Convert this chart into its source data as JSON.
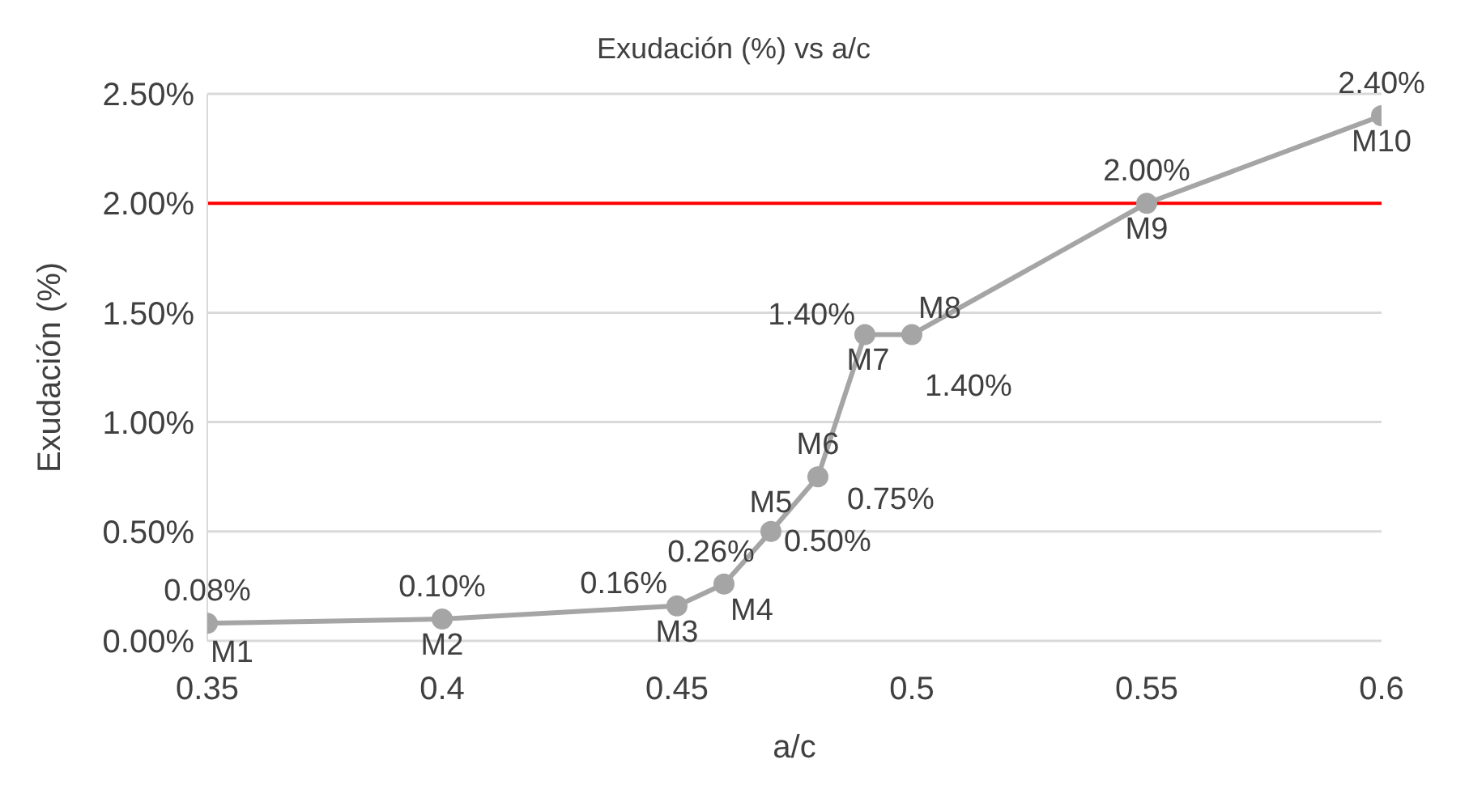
{
  "chart_data": {
    "type": "line",
    "title": "Exudación (%) vs a/c",
    "xlabel": "a/c",
    "ylabel": "Exudación (%)",
    "x": [
      0.35,
      0.4,
      0.45,
      0.46,
      0.47,
      0.48,
      0.49,
      0.5,
      0.55,
      0.6
    ],
    "series": [
      {
        "color": "#a5a5a5",
        "values": [
          0.08,
          0.1,
          0.16,
          0.26,
          0.5,
          0.75,
          1.4,
          1.4,
          2.0,
          2.4
        ],
        "value_labels": [
          "0.08%",
          "0.10%",
          "0.16%",
          "0.26%",
          "0.50%",
          "0.75%",
          "1.40%",
          "1.40%",
          "2.00%",
          "2.40%"
        ]
      }
    ],
    "xlim": [
      0.35,
      0.6
    ],
    "xticks": [
      0.35,
      0.4,
      0.45,
      0.5,
      0.55,
      0.6
    ],
    "ylim": [
      0,
      2.5
    ],
    "yticks": [
      {
        "value": 0,
        "label": "0.00%"
      },
      {
        "value": 0.5,
        "label": "0.50%"
      },
      {
        "value": 1,
        "label": "1.00%"
      },
      {
        "value": 1.5,
        "label": "1.50%"
      },
      {
        "value": 2,
        "label": "2.00%"
      },
      {
        "value": 2.5,
        "label": "2.50%"
      }
    ],
    "ref_lines": [
      {
        "axis": "y",
        "value": 2,
        "color": "#ff0000"
      }
    ],
    "annotations": [
      {
        "text": "M1",
        "x": 0.35,
        "y": 0.08
      },
      {
        "text": "M2",
        "x": 0.4,
        "y": 0.1
      },
      {
        "text": "M3",
        "x": 0.45,
        "y": 0.16
      },
      {
        "text": "M4",
        "x": 0.46,
        "y": 0.26
      },
      {
        "text": "M5",
        "x": 0.47,
        "y": 0.5
      },
      {
        "text": "M6",
        "x": 0.48,
        "y": 0.75
      },
      {
        "text": "M7",
        "x": 0.49,
        "y": 1.4
      },
      {
        "text": "M8",
        "x": 0.5,
        "y": 1.4
      },
      {
        "text": "M9",
        "x": 0.55,
        "y": 2.0
      },
      {
        "text": "M10",
        "x": 0.6,
        "y": 2.4
      }
    ],
    "grid": "y",
    "marker": "circle",
    "line_style": "solid"
  }
}
